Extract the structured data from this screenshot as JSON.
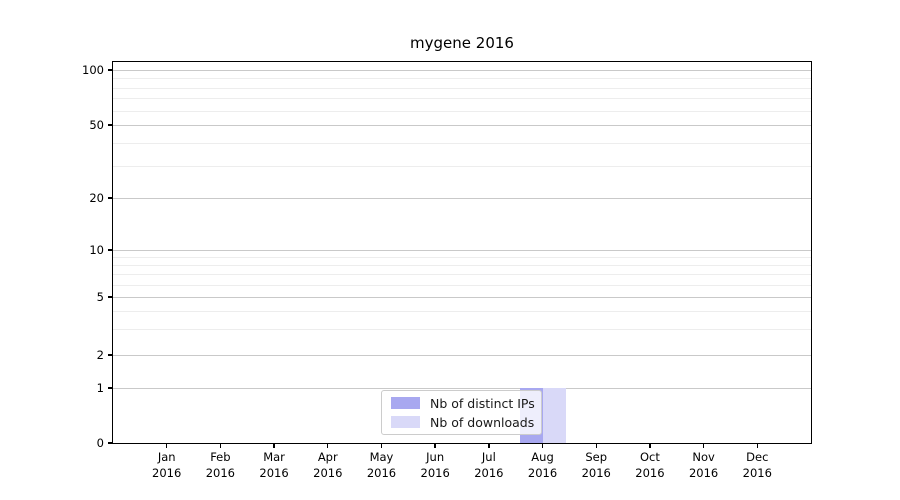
{
  "title": "mygene 2016",
  "chart_data": {
    "type": "bar",
    "title": "mygene 2016",
    "categories": [
      "Jan 2016",
      "Feb 2016",
      "Mar 2016",
      "Apr 2016",
      "May 2016",
      "Jun 2016",
      "Jul 2016",
      "Aug 2016",
      "Sep 2016",
      "Oct 2016",
      "Nov 2016",
      "Dec 2016"
    ],
    "series": [
      {
        "name": "Nb of distinct IPs",
        "color": "#a8a8f0",
        "values": [
          0,
          0,
          0,
          0,
          0,
          0,
          0,
          1,
          0,
          0,
          0,
          0
        ]
      },
      {
        "name": "Nb of downloads",
        "color": "#d9d9f8",
        "values": [
          0,
          0,
          0,
          0,
          0,
          0,
          0,
          1,
          0,
          0,
          0,
          0
        ]
      }
    ],
    "xlabel": "",
    "ylabel": "",
    "y_ticks": [
      0,
      1,
      2,
      5,
      10,
      20,
      50,
      100
    ],
    "ylim": [
      0,
      110
    ],
    "yscale": "symlog",
    "grid": "horizontal-major-and-minor",
    "legend_position": "lower center"
  },
  "colors": {
    "bar_distinct_ips": "#a8a8f0",
    "bar_downloads": "#d9d9f8",
    "grid_major": "#c9c9c9",
    "grid_minor": "#ededed",
    "axis": "#000000",
    "legend_border": "#cccccc"
  }
}
